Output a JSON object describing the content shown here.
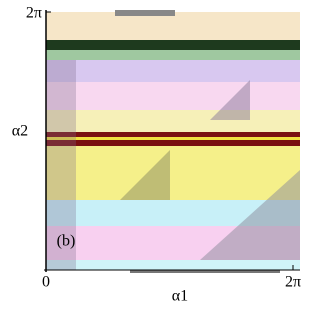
{
  "chart_data": {
    "type": "heatmap",
    "x_label": "α1",
    "y_label": "α2",
    "panel_label": "(b)",
    "xlim": [
      0,
      6.283
    ],
    "ylim": [
      0,
      6.283
    ],
    "xticks": [
      0,
      {
        "value": 6.283,
        "label": "2π"
      }
    ],
    "yticks": [
      {
        "value": 6.283,
        "label": "2π"
      }
    ],
    "grid": false
  }
}
